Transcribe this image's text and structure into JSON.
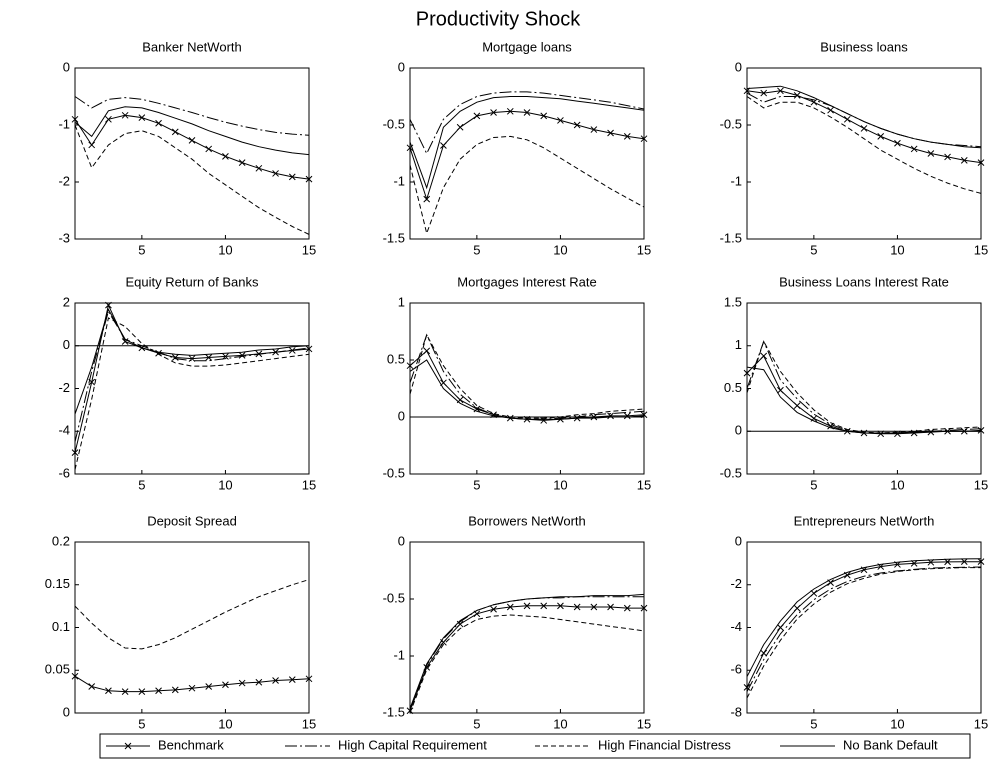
{
  "title": "Productivity Shock",
  "series_styles": [
    {
      "name": "Benchmark",
      "color": "#000000",
      "dash": "solid",
      "marker": "x"
    },
    {
      "name": "High Capital Requirement",
      "color": "#000000",
      "dash": "dashdot",
      "marker": "none"
    },
    {
      "name": "High Financial Distress",
      "color": "#000000",
      "dash": "dashed",
      "marker": "none"
    },
    {
      "name": "No Bank Default",
      "color": "#000000",
      "dash": "solid",
      "marker": "none"
    }
  ],
  "chart_data": [
    {
      "type": "line",
      "title": "Banker NetWorth",
      "x": [
        1,
        2,
        3,
        4,
        5,
        6,
        7,
        8,
        9,
        10,
        11,
        12,
        13,
        14,
        15
      ],
      "xlim": [
        1,
        15
      ],
      "xticks": [
        5,
        10,
        15
      ],
      "ylim": [
        -3,
        0
      ],
      "yticks": [
        -3,
        -2,
        -1,
        0
      ],
      "zero_line": false,
      "series": [
        {
          "values": [
            -0.9,
            -1.35,
            -0.9,
            -0.83,
            -0.87,
            -0.97,
            -1.12,
            -1.27,
            -1.42,
            -1.55,
            -1.66,
            -1.76,
            -1.85,
            -1.91,
            -1.95
          ]
        },
        {
          "values": [
            -0.5,
            -0.7,
            -0.55,
            -0.52,
            -0.55,
            -0.62,
            -0.7,
            -0.78,
            -0.87,
            -0.95,
            -1.02,
            -1.08,
            -1.13,
            -1.16,
            -1.18
          ]
        },
        {
          "values": [
            -1.0,
            -1.75,
            -1.35,
            -1.15,
            -1.1,
            -1.2,
            -1.4,
            -1.6,
            -1.85,
            -2.05,
            -2.25,
            -2.45,
            -2.62,
            -2.78,
            -2.92
          ]
        },
        {
          "values": [
            -0.95,
            -1.2,
            -0.75,
            -0.68,
            -0.7,
            -0.78,
            -0.88,
            -0.98,
            -1.1,
            -1.2,
            -1.3,
            -1.38,
            -1.44,
            -1.49,
            -1.52
          ]
        }
      ]
    },
    {
      "type": "line",
      "title": "Mortgage loans",
      "x": [
        1,
        2,
        3,
        4,
        5,
        6,
        7,
        8,
        9,
        10,
        11,
        12,
        13,
        14,
        15
      ],
      "xlim": [
        1,
        15
      ],
      "xticks": [
        5,
        10,
        15
      ],
      "ylim": [
        -1.5,
        0
      ],
      "yticks": [
        -1.5,
        -1,
        -0.5,
        0
      ],
      "zero_line": false,
      "series": [
        {
          "values": [
            -0.7,
            -1.15,
            -0.68,
            -0.52,
            -0.42,
            -0.39,
            -0.38,
            -0.39,
            -0.42,
            -0.46,
            -0.5,
            -0.54,
            -0.57,
            -0.6,
            -0.62
          ]
        },
        {
          "values": [
            -0.45,
            -0.75,
            -0.45,
            -0.32,
            -0.25,
            -0.22,
            -0.21,
            -0.21,
            -0.22,
            -0.24,
            -0.26,
            -0.28,
            -0.3,
            -0.33,
            -0.36
          ]
        },
        {
          "values": [
            -0.85,
            -1.45,
            -1.05,
            -0.8,
            -0.67,
            -0.61,
            -0.6,
            -0.63,
            -0.7,
            -0.79,
            -0.88,
            -0.97,
            -1.06,
            -1.14,
            -1.22
          ]
        },
        {
          "values": [
            -0.65,
            -1.05,
            -0.52,
            -0.38,
            -0.3,
            -0.26,
            -0.25,
            -0.25,
            -0.26,
            -0.27,
            -0.29,
            -0.31,
            -0.33,
            -0.35,
            -0.37
          ]
        }
      ]
    },
    {
      "type": "line",
      "title": "Business loans",
      "x": [
        1,
        2,
        3,
        4,
        5,
        6,
        7,
        8,
        9,
        10,
        11,
        12,
        13,
        14,
        15
      ],
      "xlim": [
        1,
        15
      ],
      "xticks": [
        5,
        10,
        15
      ],
      "ylim": [
        -1.5,
        0
      ],
      "yticks": [
        -1.5,
        -1,
        -0.5,
        0
      ],
      "zero_line": false,
      "series": [
        {
          "values": [
            -0.2,
            -0.22,
            -0.2,
            -0.24,
            -0.3,
            -0.37,
            -0.45,
            -0.53,
            -0.6,
            -0.66,
            -0.71,
            -0.75,
            -0.78,
            -0.81,
            -0.83
          ]
        },
        {
          "values": [
            -0.22,
            -0.3,
            -0.25,
            -0.25,
            -0.28,
            -0.33,
            -0.4,
            -0.47,
            -0.53,
            -0.58,
            -0.62,
            -0.65,
            -0.67,
            -0.68,
            -0.69
          ]
        },
        {
          "values": [
            -0.25,
            -0.35,
            -0.3,
            -0.3,
            -0.35,
            -0.43,
            -0.52,
            -0.62,
            -0.72,
            -0.8,
            -0.88,
            -0.95,
            -1.01,
            -1.06,
            -1.1
          ]
        },
        {
          "values": [
            -0.18,
            -0.17,
            -0.16,
            -0.2,
            -0.26,
            -0.33,
            -0.4,
            -0.47,
            -0.53,
            -0.58,
            -0.62,
            -0.65,
            -0.67,
            -0.69,
            -0.7
          ]
        }
      ]
    },
    {
      "type": "line",
      "title": "Equity Return of Banks",
      "x": [
        1,
        2,
        3,
        4,
        5,
        6,
        7,
        8,
        9,
        10,
        11,
        12,
        13,
        14,
        15
      ],
      "xlim": [
        1,
        15
      ],
      "xticks": [
        5,
        10,
        15
      ],
      "ylim": [
        -6,
        2
      ],
      "yticks": [
        -6,
        -4,
        -2,
        0,
        2
      ],
      "zero_line": true,
      "series": [
        {
          "values": [
            -5,
            -1.7,
            1.9,
            0.2,
            -0.1,
            -0.35,
            -0.55,
            -0.6,
            -0.55,
            -0.5,
            -0.45,
            -0.38,
            -0.3,
            -0.22,
            -0.15
          ]
        },
        {
          "values": [
            -4.5,
            -1.2,
            1.6,
            0.3,
            0,
            -0.3,
            -0.6,
            -0.7,
            -0.7,
            -0.6,
            -0.5,
            -0.4,
            -0.3,
            -0.2,
            -0.1
          ]
        },
        {
          "values": [
            -5.8,
            -2.5,
            1.3,
            0.9,
            0.1,
            -0.4,
            -0.8,
            -0.95,
            -0.95,
            -0.9,
            -0.8,
            -0.7,
            -0.6,
            -0.5,
            -0.4
          ]
        },
        {
          "values": [
            -3.2,
            -1,
            1.7,
            0.3,
            -0.1,
            -0.3,
            -0.4,
            -0.45,
            -0.4,
            -0.35,
            -0.3,
            -0.2,
            -0.15,
            -0.05,
            0
          ]
        }
      ]
    },
    {
      "type": "line",
      "title": "Mortgages Interest Rate",
      "x": [
        1,
        2,
        3,
        4,
        5,
        6,
        7,
        8,
        9,
        10,
        11,
        12,
        13,
        14,
        15
      ],
      "xlim": [
        1,
        15
      ],
      "xticks": [
        5,
        10,
        15
      ],
      "ylim": [
        -0.5,
        1
      ],
      "yticks": [
        -0.5,
        0,
        0.5,
        1
      ],
      "zero_line": true,
      "series": [
        {
          "values": [
            0.45,
            0.58,
            0.3,
            0.15,
            0.07,
            0.02,
            -0.01,
            -0.02,
            -0.03,
            -0.02,
            -0.01,
            0,
            0.01,
            0.01,
            0.02
          ]
        },
        {
          "values": [
            0.3,
            0.72,
            0.4,
            0.2,
            0.08,
            0.02,
            -0.01,
            -0.02,
            -0.02,
            -0.01,
            0,
            0.02,
            0.03,
            0.04,
            0.05
          ]
        },
        {
          "values": [
            0.2,
            0.72,
            0.45,
            0.25,
            0.1,
            0.03,
            0,
            -0.01,
            -0.01,
            0,
            0.02,
            0.03,
            0.05,
            0.06,
            0.07
          ]
        },
        {
          "values": [
            0.4,
            0.5,
            0.25,
            0.12,
            0.05,
            0.01,
            -0.01,
            -0.02,
            -0.02,
            -0.02,
            -0.01,
            -0.01,
            0,
            0,
            0.01
          ]
        }
      ]
    },
    {
      "type": "line",
      "title": "Business Loans Interest Rate",
      "x": [
        1,
        2,
        3,
        4,
        5,
        6,
        7,
        8,
        9,
        10,
        11,
        12,
        13,
        14,
        15
      ],
      "xlim": [
        1,
        15
      ],
      "xticks": [
        5,
        10,
        15
      ],
      "ylim": [
        -0.5,
        1.5
      ],
      "yticks": [
        -0.5,
        0,
        0.5,
        1,
        1.5
      ],
      "zero_line": true,
      "series": [
        {
          "values": [
            0.68,
            0.88,
            0.48,
            0.3,
            0.15,
            0.06,
            0,
            -0.02,
            -0.03,
            -0.03,
            -0.02,
            -0.01,
            0,
            0,
            0.01
          ]
        },
        {
          "values": [
            0.5,
            1.05,
            0.6,
            0.38,
            0.2,
            0.08,
            0.01,
            -0.02,
            -0.02,
            -0.02,
            -0.01,
            0,
            0.01,
            0.02,
            0.03
          ]
        },
        {
          "values": [
            0.45,
            1.05,
            0.7,
            0.45,
            0.25,
            0.1,
            0.02,
            -0.01,
            -0.02,
            -0.01,
            0,
            0.02,
            0.03,
            0.04,
            0.05
          ]
        },
        {
          "values": [
            0.75,
            0.72,
            0.4,
            0.22,
            0.12,
            0.04,
            0,
            -0.02,
            -0.02,
            -0.02,
            -0.01,
            0,
            0,
            0,
            0
          ]
        }
      ]
    },
    {
      "type": "line",
      "title": "Deposit Spread",
      "x": [
        1,
        2,
        3,
        4,
        5,
        6,
        7,
        8,
        9,
        10,
        11,
        12,
        13,
        14,
        15
      ],
      "xlim": [
        1,
        15
      ],
      "xticks": [
        5,
        10,
        15
      ],
      "ylim": [
        0,
        0.2
      ],
      "yticks": [
        0,
        0.05,
        0.1,
        0.15,
        0.2
      ],
      "zero_line": false,
      "series": [
        {
          "values": [
            0.043,
            0.031,
            0.026,
            0.025,
            0.025,
            0.026,
            0.027,
            0.029,
            0.031,
            0.033,
            0.035,
            0.036,
            0.038,
            0.039,
            0.04
          ]
        },
        {
          "values": [
            0,
            0,
            0,
            0,
            0,
            0,
            0,
            0,
            0,
            0,
            0,
            0,
            0,
            0,
            0
          ]
        },
        {
          "values": [
            0.125,
            0.105,
            0.088,
            0.076,
            0.075,
            0.08,
            0.088,
            0.098,
            0.108,
            0.118,
            0.127,
            0.136,
            0.143,
            0.15,
            0.156
          ]
        },
        {
          "values": [
            0,
            0,
            0,
            0,
            0,
            0,
            0,
            0,
            0,
            0,
            0,
            0,
            0,
            0,
            0
          ]
        }
      ]
    },
    {
      "type": "line",
      "title": "Borrowers NetWorth",
      "x": [
        1,
        2,
        3,
        4,
        5,
        6,
        7,
        8,
        9,
        10,
        11,
        12,
        13,
        14,
        15
      ],
      "xlim": [
        1,
        15
      ],
      "xticks": [
        5,
        10,
        15
      ],
      "ylim": [
        -1.5,
        0
      ],
      "yticks": [
        -1.5,
        -1,
        -0.5,
        0
      ],
      "zero_line": false,
      "series": [
        {
          "values": [
            -1.48,
            -1.1,
            -0.88,
            -0.72,
            -0.63,
            -0.59,
            -0.57,
            -0.56,
            -0.56,
            -0.56,
            -0.57,
            -0.57,
            -0.57,
            -0.58,
            -0.58
          ]
        },
        {
          "values": [
            -1.47,
            -1.08,
            -0.85,
            -0.7,
            -0.6,
            -0.55,
            -0.52,
            -0.5,
            -0.49,
            -0.49,
            -0.48,
            -0.48,
            -0.48,
            -0.48,
            -0.48
          ]
        },
        {
          "values": [
            -1.5,
            -1.12,
            -0.9,
            -0.76,
            -0.68,
            -0.65,
            -0.64,
            -0.65,
            -0.66,
            -0.68,
            -0.7,
            -0.72,
            -0.74,
            -0.76,
            -0.78
          ]
        },
        {
          "values": [
            -1.46,
            -1.07,
            -0.84,
            -0.69,
            -0.6,
            -0.55,
            -0.52,
            -0.5,
            -0.49,
            -0.48,
            -0.48,
            -0.47,
            -0.47,
            -0.47,
            -0.46
          ]
        }
      ]
    },
    {
      "type": "line",
      "title": "Entrepreneurs NetWorth",
      "x": [
        1,
        2,
        3,
        4,
        5,
        6,
        7,
        8,
        9,
        10,
        11,
        12,
        13,
        14,
        15
      ],
      "xlim": [
        1,
        15
      ],
      "xticks": [
        5,
        10,
        15
      ],
      "ylim": [
        -8,
        0
      ],
      "yticks": [
        -8,
        -6,
        -4,
        -2,
        0
      ],
      "zero_line": false,
      "series": [
        {
          "values": [
            -6.8,
            -5.2,
            -4,
            -3.1,
            -2.4,
            -1.9,
            -1.55,
            -1.3,
            -1.15,
            -1.05,
            -1,
            -0.95,
            -0.93,
            -0.92,
            -0.92
          ]
        },
        {
          "values": [
            -7,
            -5.5,
            -4.3,
            -3.4,
            -2.7,
            -2.2,
            -1.85,
            -1.6,
            -1.45,
            -1.35,
            -1.28,
            -1.22,
            -1.2,
            -1.18,
            -1.17
          ]
        },
        {
          "values": [
            -7.3,
            -5.8,
            -4.6,
            -3.6,
            -2.9,
            -2.35,
            -1.95,
            -1.7,
            -1.5,
            -1.38,
            -1.3,
            -1.25,
            -1.22,
            -1.2,
            -1.2
          ]
        },
        {
          "values": [
            -6.3,
            -4.8,
            -3.7,
            -2.8,
            -2.2,
            -1.75,
            -1.42,
            -1.2,
            -1.05,
            -0.95,
            -0.88,
            -0.84,
            -0.81,
            -0.79,
            -0.78
          ]
        }
      ]
    }
  ]
}
